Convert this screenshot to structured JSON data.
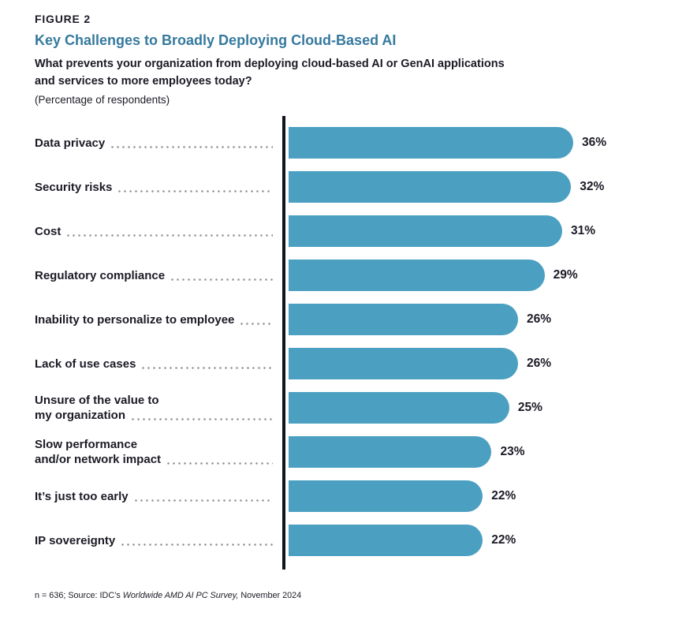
{
  "header": {
    "figure_label": "FIGURE 2",
    "title": "Key Challenges to Broadly Deploying Cloud-Based AI",
    "question_line1": "What prevents your organization from deploying cloud-based AI or GenAI applications",
    "question_line2": "and services to more employees today?",
    "subtitle": "(Percentage of respondents)"
  },
  "chart_data": {
    "type": "bar",
    "orientation": "horizontal",
    "title": "Key Challenges to Broadly Deploying Cloud-Based AI",
    "xlabel": "",
    "ylabel": "",
    "xlim": [
      0,
      36
    ],
    "grid": false,
    "legend": false,
    "bar_color": "#4ba0c2",
    "categories": [
      "Data privacy",
      "Security risks",
      "Cost",
      "Regulatory compliance",
      "Inability to personalize to employee",
      "Lack of use cases",
      "Unsure of the value to\nmy organization",
      "Slow performance\nand/or network impact",
      "It’s just too early",
      "IP sovereignty"
    ],
    "values": [
      36,
      32,
      31,
      29,
      26,
      26,
      25,
      23,
      22,
      22
    ],
    "value_labels": [
      "36%",
      "32%",
      "31%",
      "29%",
      "26%",
      "26%",
      "25%",
      "23%",
      "22%",
      "22%"
    ]
  },
  "footer": {
    "text_prefix": "n = 636; Source: IDC’s ",
    "text_italic": "Worldwide AMD AI PC Survey,",
    "text_suffix": " November 2024"
  },
  "colors": {
    "accent_bar": "#4ba0c2",
    "title_teal": "#35799e",
    "text_dark": "#1b1b26",
    "axis": "#10141c",
    "leader_dots": "#9b9b9e"
  }
}
